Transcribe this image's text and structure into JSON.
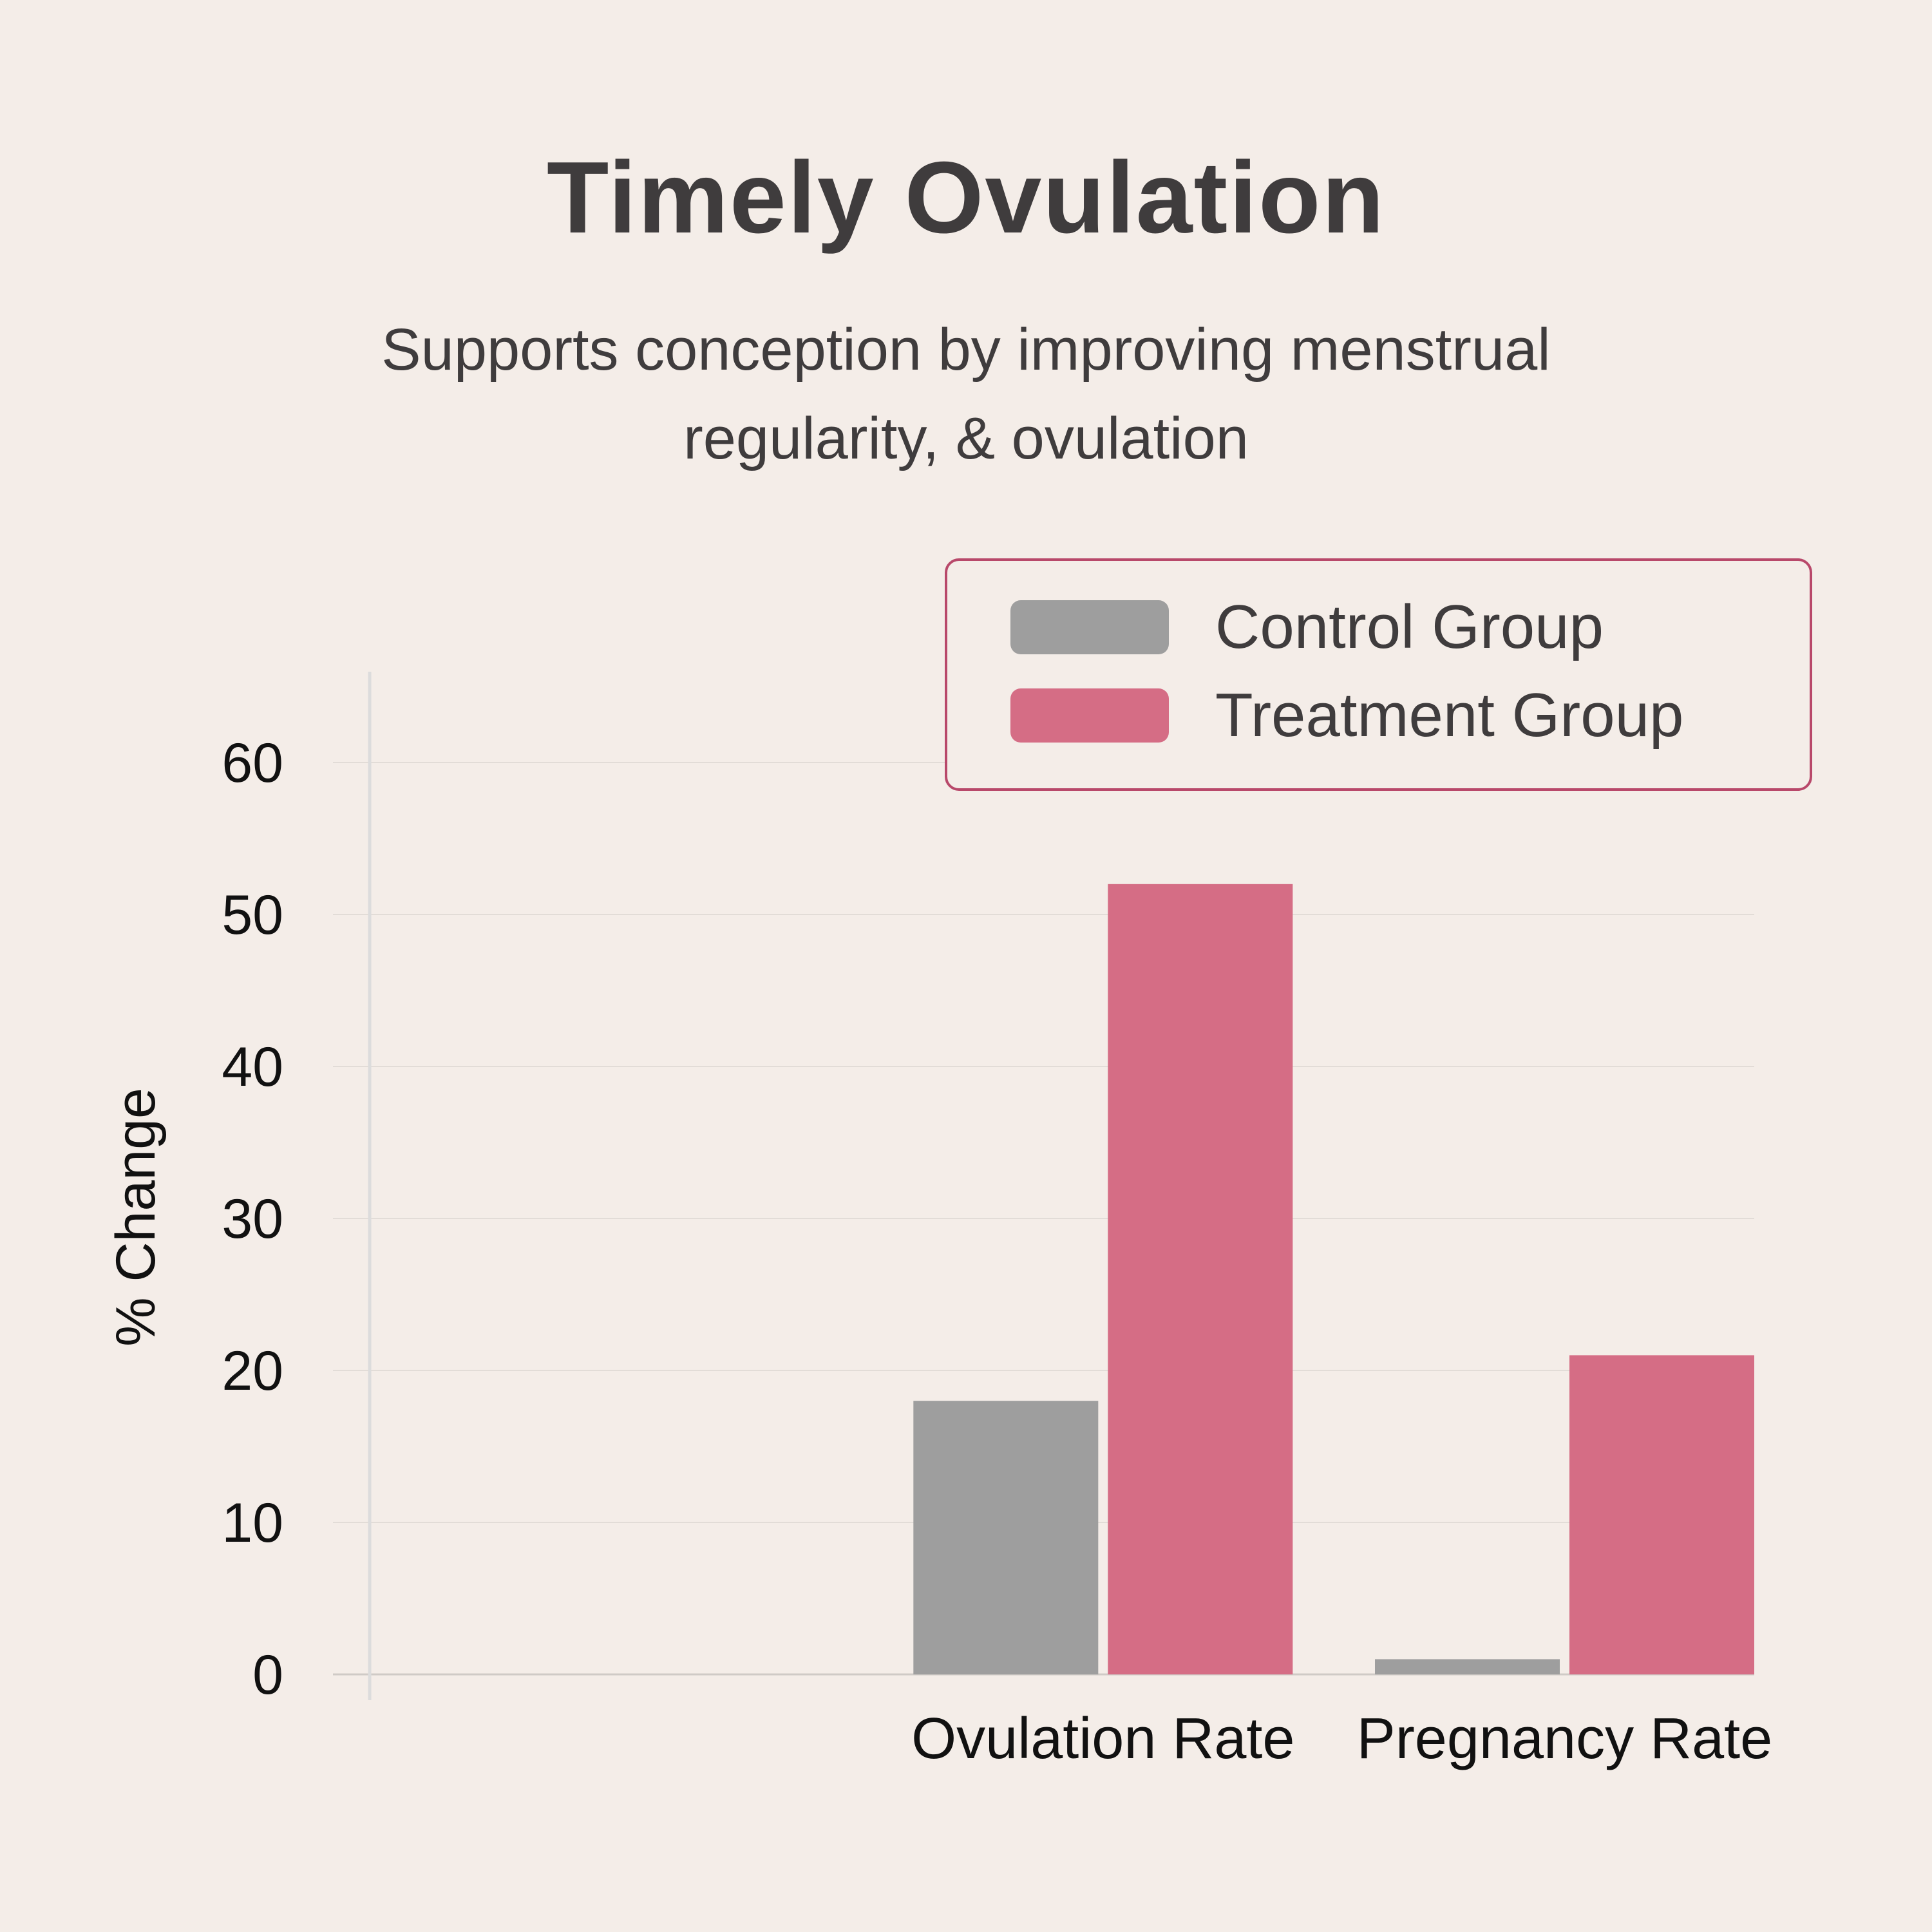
{
  "header": {
    "title": "Timely Ovulation",
    "subtitle_lines": [
      "Supports conception by improving menstrual",
      "regularity, & ovulation"
    ]
  },
  "chart_data": {
    "type": "bar",
    "title": "Timely Ovulation",
    "subtitle": "Supports conception by improving menstrual regularity, & ovulation",
    "xlabel": "",
    "ylabel": "% Change",
    "categories": [
      "Ovulation Rate",
      "Pregnancy Rate"
    ],
    "series": [
      {
        "name": "Control Group",
        "color": "#9e9e9e",
        "values": [
          18,
          1
        ]
      },
      {
        "name": "Treatment Group",
        "color": "#d56d85",
        "values": [
          52,
          21
        ]
      }
    ],
    "ylim": [
      0,
      60
    ],
    "yticks": [
      0,
      10,
      20,
      30,
      40,
      50,
      60
    ],
    "grid": true,
    "legend_position": "top-right",
    "legend_border_color": "#b8486a"
  }
}
